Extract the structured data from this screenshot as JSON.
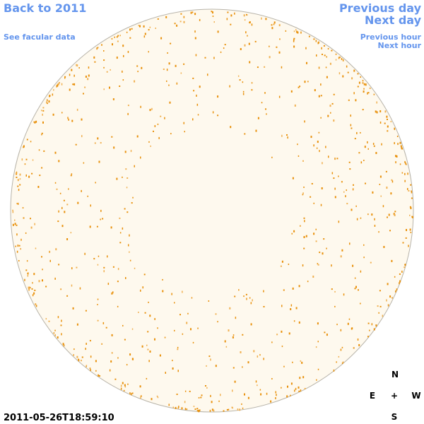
{
  "nav": {
    "back_year": "Back to 2011",
    "previous_day": "Previous day",
    "next_day": "Next day",
    "facular_data": "See facular data",
    "previous_hour": "Previous hour",
    "next_hour": "Next hour"
  },
  "compass": {
    "north": "N",
    "east": "E",
    "center": "+",
    "west": "W",
    "south": "S"
  },
  "timestamp": "2011-05-26T18:59:10"
}
